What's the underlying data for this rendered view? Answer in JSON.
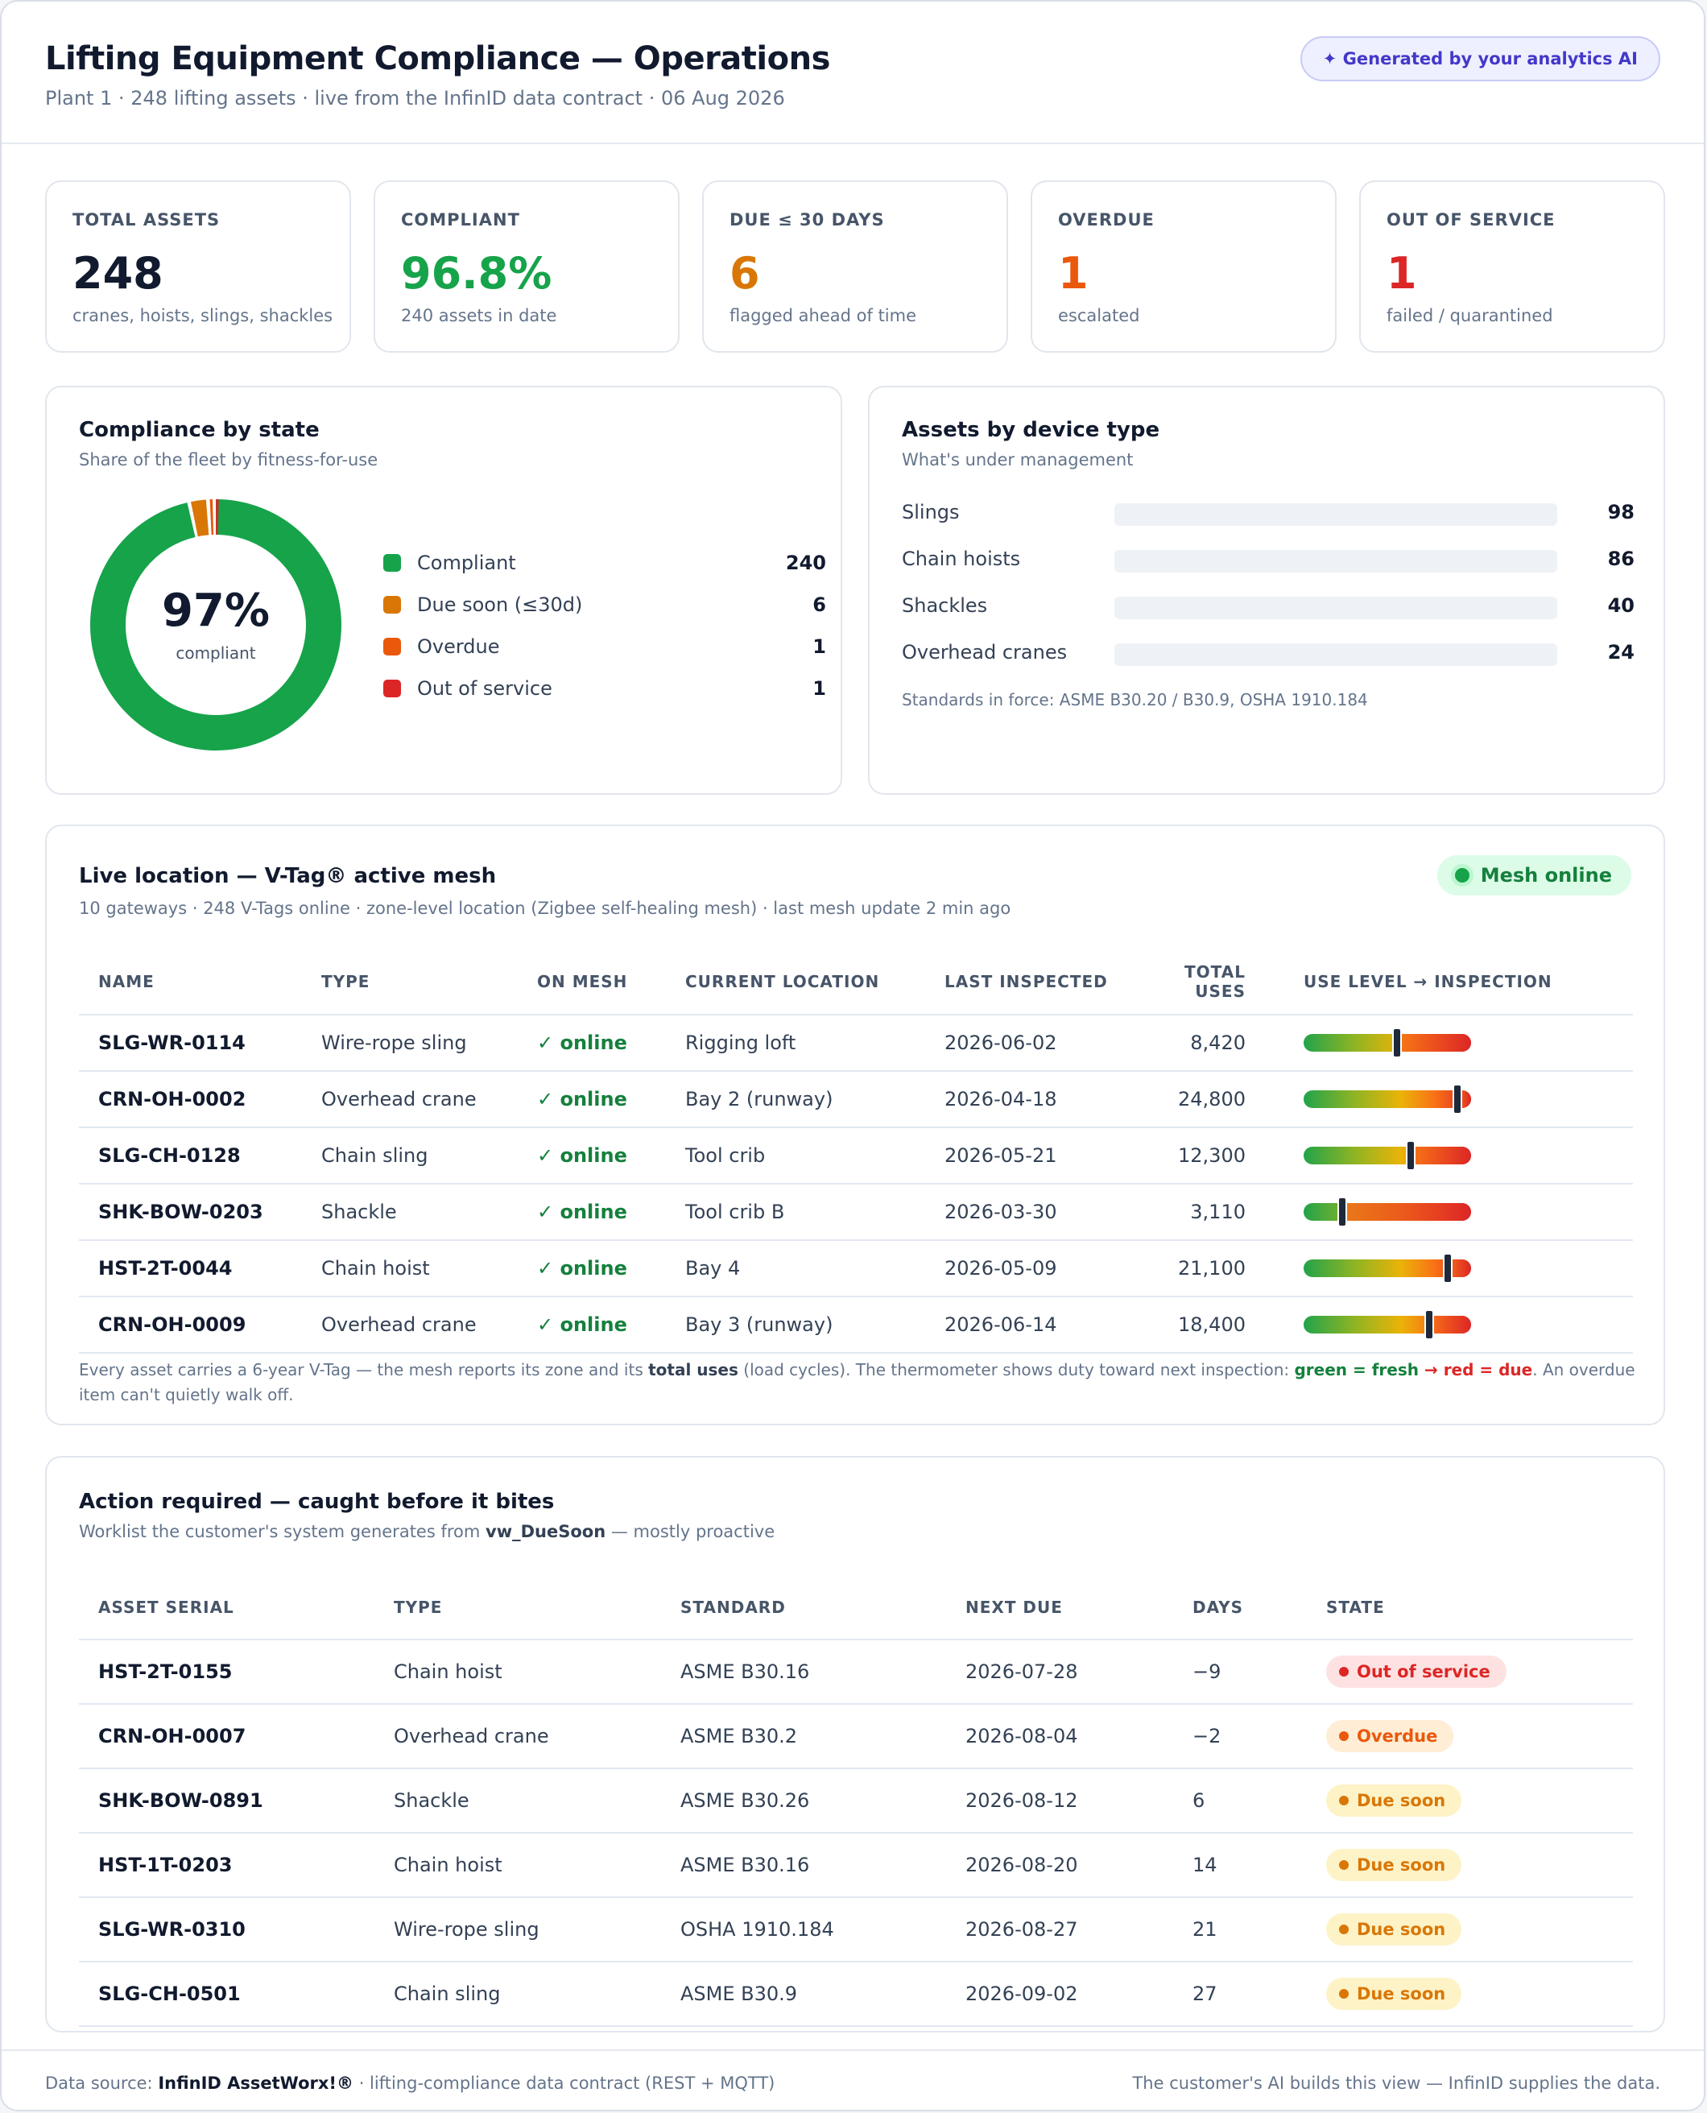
{
  "header": {
    "title": "Lifting Equipment Compliance — Operations",
    "subtitle": "Plant 1 · 248 lifting assets · live from the InfinID data contract · 06 Aug 2026",
    "ai_badge": "✦ Generated by your analytics AI"
  },
  "kpis": [
    {
      "label": "TOTAL ASSETS",
      "value": "248",
      "note": "cranes, hoists, slings, shackles",
      "color": "#111a2e"
    },
    {
      "label": "COMPLIANT",
      "value": "96.8%",
      "note": "240 assets in date",
      "color": "#16a34a"
    },
    {
      "label": "DUE ≤ 30 DAYS",
      "value": "6",
      "note": "flagged ahead of time",
      "color": "#d97706"
    },
    {
      "label": "OVERDUE",
      "value": "1",
      "note": "escalated",
      "color": "#ea580c"
    },
    {
      "label": "OUT OF SERVICE",
      "value": "1",
      "note": "failed / quarantined",
      "color": "#dc2626"
    }
  ],
  "compliance": {
    "title": "Compliance by state",
    "subtitle": "Share of the fleet by fitness-for-use",
    "center_value": "97%",
    "center_caption": "compliant",
    "items": [
      {
        "label": "Compliant",
        "value": "240",
        "color": "#16a34a"
      },
      {
        "label": "Due soon (≤30d)",
        "value": "6",
        "color": "#d97706"
      },
      {
        "label": "Overdue",
        "value": "1",
        "color": "#ea580c"
      },
      {
        "label": "Out of service",
        "value": "1",
        "color": "#dc2626"
      }
    ]
  },
  "device_types": {
    "title": "Assets by device type",
    "subtitle": "What's under management",
    "items": [
      {
        "label": "Slings",
        "value": "98"
      },
      {
        "label": "Chain hoists",
        "value": "86"
      },
      {
        "label": "Shackles",
        "value": "40"
      },
      {
        "label": "Overhead cranes",
        "value": "24"
      }
    ],
    "note": "Standards in force: ASME B30.20 / B30.9, OSHA 1910.184"
  },
  "live_location": {
    "title": "Live location — V-Tag® active mesh",
    "subtitle": "10 gateways · 248 V-Tags online · zone-level location (Zigbee self-healing mesh) · last mesh update 2 min ago",
    "mesh_status": "Mesh online",
    "columns": [
      "NAME",
      "TYPE",
      "ON MESH",
      "CURRENT LOCATION",
      "LAST INSPECTED",
      "TOTAL USES",
      "USE LEVEL → INSPECTION"
    ],
    "rows": [
      {
        "name": "SLG-WR-0114",
        "type": "Wire-rope sling",
        "mesh": "✓ online",
        "location": "Rigging loft",
        "inspected": "2026-06-02",
        "uses": "8,420",
        "level": 0.55
      },
      {
        "name": "CRN-OH-0002",
        "type": "Overhead crane",
        "mesh": "✓ online",
        "location": "Bay 2 (runway)",
        "inspected": "2026-04-18",
        "uses": "24,800",
        "level": 0.91
      },
      {
        "name": "SLG-CH-0128",
        "type": "Chain sling",
        "mesh": "✓ online",
        "location": "Tool crib",
        "inspected": "2026-05-21",
        "uses": "12,300",
        "level": 0.63
      },
      {
        "name": "SHK-BOW-0203",
        "type": "Shackle",
        "mesh": "✓ online",
        "location": "Tool crib B",
        "inspected": "2026-03-30",
        "uses": "3,110",
        "level": 0.22
      },
      {
        "name": "HST-2T-0044",
        "type": "Chain hoist",
        "mesh": "✓ online",
        "location": "Bay 4",
        "inspected": "2026-05-09",
        "uses": "21,100",
        "level": 0.85
      },
      {
        "name": "CRN-OH-0009",
        "type": "Overhead crane",
        "mesh": "✓ online",
        "location": "Bay 3 (runway)",
        "inspected": "2026-06-14",
        "uses": "18,400",
        "level": 0.74
      }
    ],
    "note_1": "Every asset carries a 6-year V-Tag — the mesh reports its zone and its ",
    "note_bold": "total uses",
    "note_2": " (load cycles). The thermometer shows duty toward next inspection: ",
    "note_green": "green = fresh",
    "note_arrow": " → ",
    "note_red": "red = due",
    "note_3": ". An overdue item can't quietly walk off."
  },
  "actions": {
    "title": "Action required — caught before it bites",
    "subtitle_1": "Worklist the customer's system generates from ",
    "subtitle_bold": "vw_DueSoon",
    "subtitle_2": " — mostly proactive",
    "columns": [
      "ASSET SERIAL",
      "TYPE",
      "STANDARD",
      "NEXT DUE",
      "DAYS",
      "STATE"
    ],
    "rows": [
      {
        "serial": "HST-2T-0155",
        "type": "Chain hoist",
        "standard": "ASME B30.16",
        "due": "2026-07-28",
        "days": "−9",
        "state": "Out of service",
        "fg": "#dc2626",
        "bg": "#fee2e2"
      },
      {
        "serial": "CRN-OH-0007",
        "type": "Overhead crane",
        "standard": "ASME B30.2",
        "due": "2026-08-04",
        "days": "−2",
        "state": "Overdue",
        "fg": "#ea580c",
        "bg": "#ffedd5"
      },
      {
        "serial": "SHK-BOW-0891",
        "type": "Shackle",
        "standard": "ASME B30.26",
        "due": "2026-08-12",
        "days": "6",
        "state": "Due soon",
        "fg": "#d97706",
        "bg": "#fef3c7"
      },
      {
        "serial": "HST-1T-0203",
        "type": "Chain hoist",
        "standard": "ASME B30.16",
        "due": "2026-08-20",
        "days": "14",
        "state": "Due soon",
        "fg": "#d97706",
        "bg": "#fef3c7"
      },
      {
        "serial": "SLG-WR-0310",
        "type": "Wire-rope sling",
        "standard": "OSHA 1910.184",
        "due": "2026-08-27",
        "days": "21",
        "state": "Due soon",
        "fg": "#d97706",
        "bg": "#fef3c7"
      },
      {
        "serial": "SLG-CH-0501",
        "type": "Chain sling",
        "standard": "ASME B30.9",
        "due": "2026-09-02",
        "days": "27",
        "state": "Due soon",
        "fg": "#d97706",
        "bg": "#fef3c7"
      }
    ]
  },
  "footer": {
    "left_1": "Data source: ",
    "left_bold": "InfinID AssetWorx!®",
    "left_2": " · lifting-compliance data contract (REST + MQTT)",
    "right": "The customer's AI builds this view — InfinID supplies the data."
  }
}
